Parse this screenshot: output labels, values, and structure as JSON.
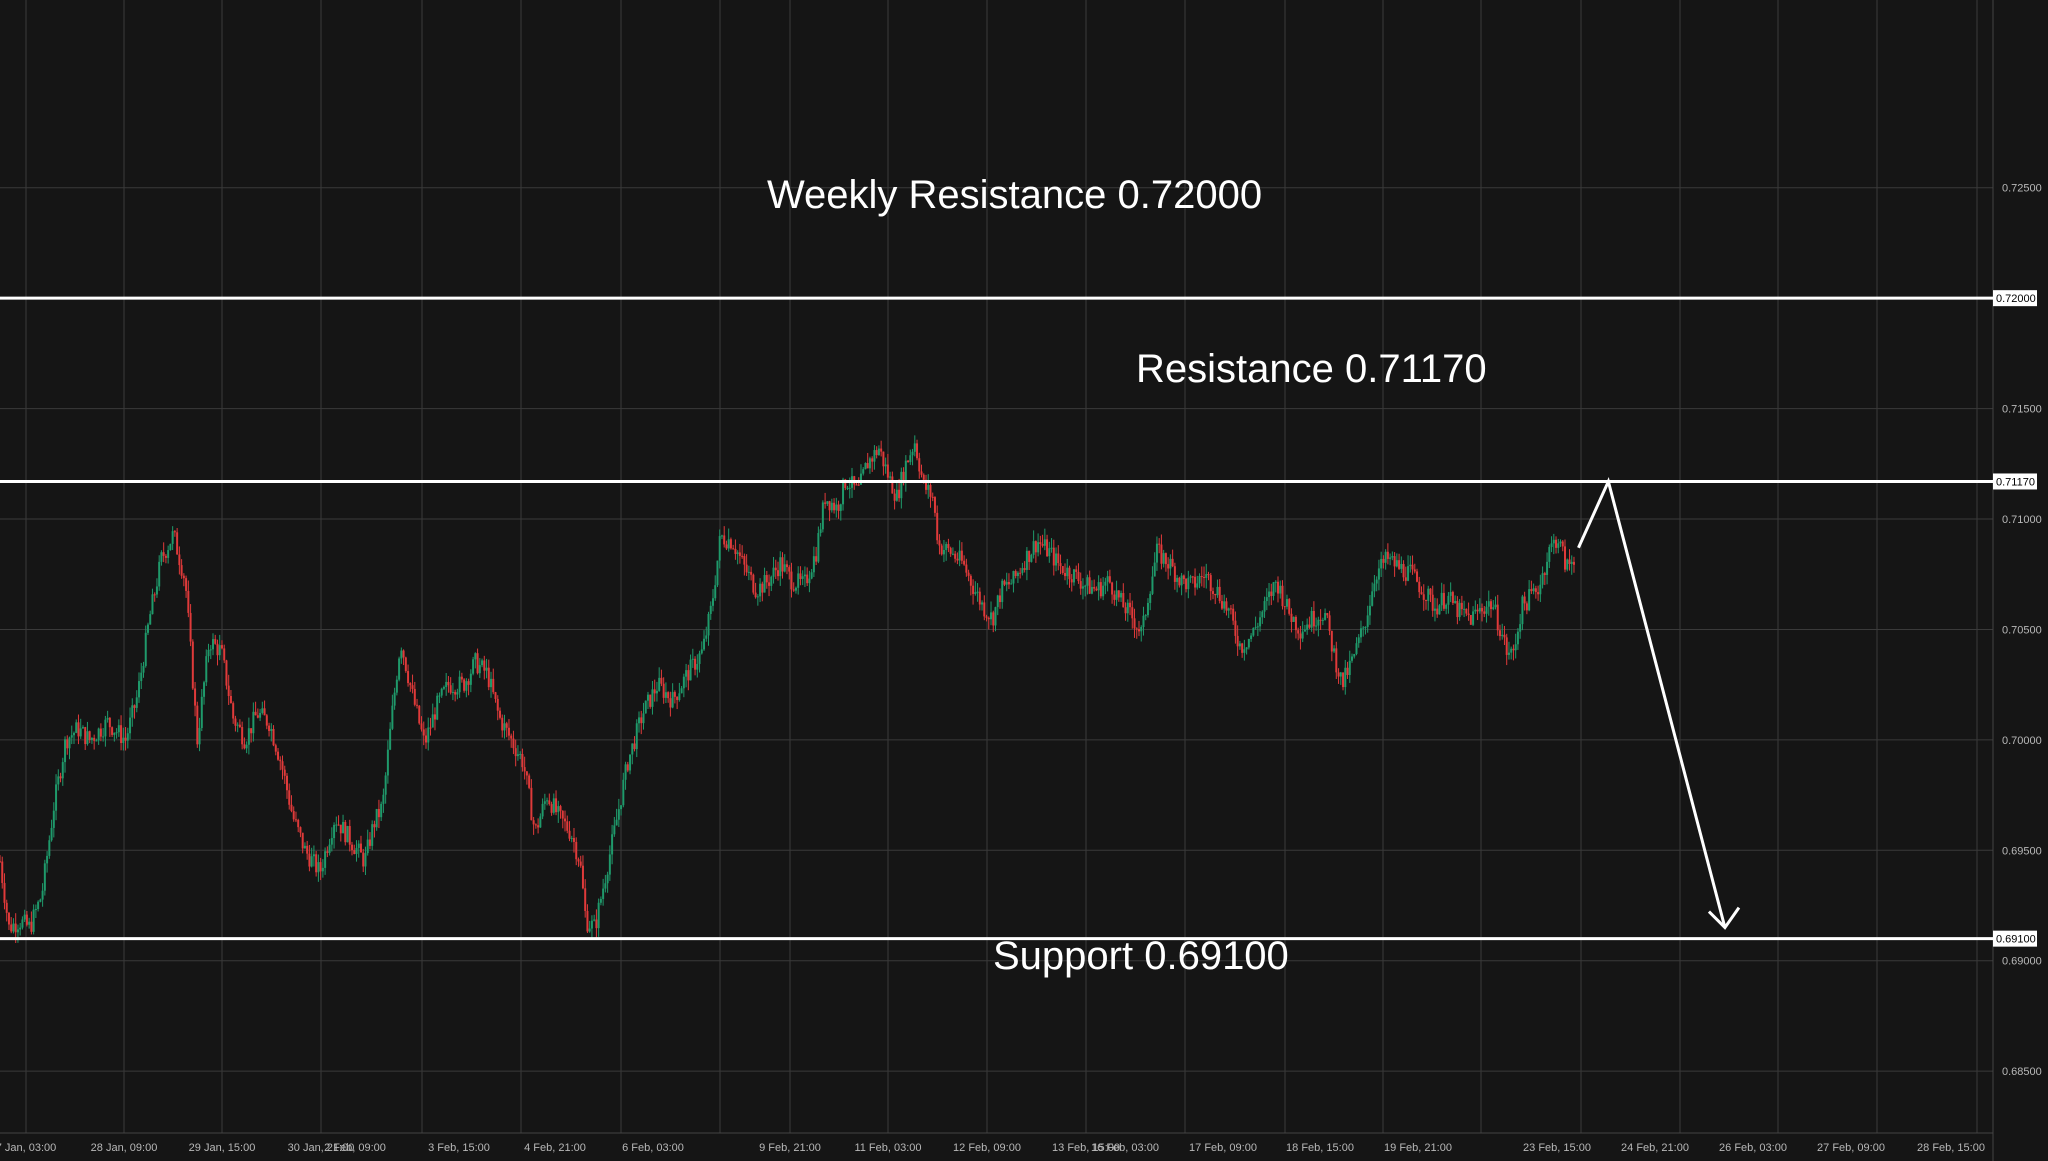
{
  "chart_data": {
    "type": "candlestick",
    "colors": {
      "background": "#151515",
      "grid": "#3a3a3a",
      "up": "#1f9a6b",
      "down": "#e03a3a",
      "levels": "#ffffff",
      "axis_text": "#b8b8b8"
    },
    "grid": true,
    "ylim": [
      0.6822,
      0.7335
    ],
    "y_ticks": [
      "0.72500",
      "0.72000",
      "0.71500",
      "0.71170",
      "0.71000",
      "0.70500",
      "0.70000",
      "0.69500",
      "0.69100",
      "0.69000",
      "0.68500"
    ],
    "x_ticks": [
      "7 Jan, 03:00",
      "28 Jan, 09:00",
      "29 Jan, 15:00",
      "30 Jan, 21:00",
      "2 Feb, 09:00",
      "3 Feb, 15:00",
      "4 Feb, 21:00",
      "6 Feb, 03:00",
      "9 Feb, 21:00",
      "11 Feb, 03:00",
      "12 Feb, 09:00",
      "13 Feb, 15:00",
      "16 Feb, 03:00",
      "17 Feb, 09:00",
      "18 Feb, 15:00",
      "19 Feb, 21:00",
      "23 Feb, 15:00",
      "24 Feb, 21:00",
      "26 Feb, 03:00",
      "27 Feb, 09:00",
      "28 Feb, 15:00"
    ],
    "price_path": [
      [
        0,
        0.6945
      ],
      [
        6,
        0.6915
      ],
      [
        13,
        0.6918
      ],
      [
        20,
        0.6915
      ],
      [
        28,
        0.693
      ],
      [
        36,
        0.697
      ],
      [
        44,
        0.7
      ],
      [
        52,
        0.7005
      ],
      [
        60,
        0.7
      ],
      [
        72,
        0.7008
      ],
      [
        84,
        0.7
      ],
      [
        92,
        0.702
      ],
      [
        100,
        0.7055
      ],
      [
        108,
        0.7082
      ],
      [
        116,
        0.7093
      ],
      [
        124,
        0.7072
      ],
      [
        132,
        0.7
      ],
      [
        140,
        0.7045
      ],
      [
        148,
        0.704
      ],
      [
        156,
        0.701
      ],
      [
        164,
        0.7
      ],
      [
        172,
        0.7012
      ],
      [
        180,
        0.7008
      ],
      [
        188,
        0.699
      ],
      [
        196,
        0.6965
      ],
      [
        204,
        0.695
      ],
      [
        214,
        0.694
      ],
      [
        224,
        0.6965
      ],
      [
        234,
        0.6955
      ],
      [
        244,
        0.6945
      ],
      [
        250,
        0.6962
      ],
      [
        256,
        0.697
      ],
      [
        262,
        0.701
      ],
      [
        268,
        0.7045
      ],
      [
        276,
        0.702
      ],
      [
        284,
        0.6998
      ],
      [
        292,
        0.7015
      ],
      [
        300,
        0.7025
      ],
      [
        310,
        0.7025
      ],
      [
        318,
        0.7035
      ],
      [
        326,
        0.703
      ],
      [
        334,
        0.701
      ],
      [
        342,
        0.7
      ],
      [
        350,
        0.699
      ],
      [
        358,
        0.6958
      ],
      [
        366,
        0.6975
      ],
      [
        374,
        0.6965
      ],
      [
        382,
        0.6958
      ],
      [
        388,
        0.6945
      ],
      [
        392,
        0.6918
      ],
      [
        398,
        0.6915
      ],
      [
        404,
        0.6935
      ],
      [
        410,
        0.6955
      ],
      [
        420,
        0.699
      ],
      [
        430,
        0.7012
      ],
      [
        440,
        0.7025
      ],
      [
        450,
        0.7018
      ],
      [
        460,
        0.703
      ],
      [
        470,
        0.704
      ],
      [
        476,
        0.706
      ],
      [
        482,
        0.7092
      ],
      [
        490,
        0.709
      ],
      [
        498,
        0.7078
      ],
      [
        506,
        0.7068
      ],
      [
        514,
        0.7072
      ],
      [
        522,
        0.708
      ],
      [
        530,
        0.7072
      ],
      [
        538,
        0.707
      ],
      [
        546,
        0.7085
      ],
      [
        552,
        0.711
      ],
      [
        560,
        0.7105
      ],
      [
        566,
        0.7118
      ],
      [
        574,
        0.7112
      ],
      [
        580,
        0.7125
      ],
      [
        588,
        0.7132
      ],
      [
        594,
        0.712
      ],
      [
        600,
        0.711
      ],
      [
        606,
        0.7125
      ],
      [
        612,
        0.7135
      ],
      [
        618,
        0.7115
      ],
      [
        624,
        0.711
      ],
      [
        628,
        0.7088
      ],
      [
        636,
        0.7085
      ],
      [
        644,
        0.708
      ],
      [
        652,
        0.7068
      ],
      [
        658,
        0.706
      ],
      [
        664,
        0.7055
      ],
      [
        670,
        0.7068
      ],
      [
        678,
        0.7072
      ],
      [
        686,
        0.7082
      ],
      [
        694,
        0.709
      ],
      [
        702,
        0.7085
      ],
      [
        710,
        0.7078
      ],
      [
        718,
        0.7075
      ],
      [
        726,
        0.707
      ],
      [
        734,
        0.7068
      ],
      [
        742,
        0.7072
      ],
      [
        750,
        0.7062
      ],
      [
        758,
        0.7055
      ],
      [
        764,
        0.7048
      ],
      [
        768,
        0.7065
      ],
      [
        774,
        0.7085
      ],
      [
        782,
        0.708
      ],
      [
        790,
        0.7072
      ],
      [
        798,
        0.707
      ],
      [
        806,
        0.7075
      ],
      [
        814,
        0.7068
      ],
      [
        822,
        0.7058
      ],
      [
        830,
        0.7042
      ],
      [
        838,
        0.7048
      ],
      [
        846,
        0.706
      ],
      [
        854,
        0.7072
      ],
      [
        862,
        0.7058
      ],
      [
        870,
        0.705
      ],
      [
        878,
        0.7055
      ],
      [
        886,
        0.7058
      ],
      [
        892,
        0.704
      ],
      [
        898,
        0.7025
      ],
      [
        906,
        0.7038
      ],
      [
        914,
        0.7055
      ],
      [
        920,
        0.7075
      ],
      [
        928,
        0.7082
      ],
      [
        936,
        0.7078
      ],
      [
        944,
        0.7075
      ],
      [
        952,
        0.7068
      ],
      [
        960,
        0.706
      ],
      [
        968,
        0.7065
      ],
      [
        976,
        0.7058
      ],
      [
        984,
        0.7055
      ],
      [
        992,
        0.706
      ],
      [
        998,
        0.7062
      ],
      [
        1004,
        0.705
      ],
      [
        1008,
        0.704
      ],
      [
        1012,
        0.7038
      ],
      [
        1018,
        0.706
      ],
      [
        1024,
        0.7065
      ],
      [
        1030,
        0.707
      ],
      [
        1036,
        0.7085
      ],
      [
        1042,
        0.7092
      ],
      [
        1048,
        0.7078
      ],
      [
        1054,
        0.7083
      ]
    ]
  },
  "levels": [
    {
      "label": "Weekly Resistance 0.72000",
      "price": 0.72,
      "tag": "0.72000"
    },
    {
      "label": "Resistance 0.71170",
      "price": 0.7117,
      "tag": "0.71170"
    },
    {
      "label": "Support 0.69100",
      "price": 0.691,
      "tag": "0.69100"
    }
  ],
  "projection": {
    "points": [
      [
        1056,
        0.7087
      ],
      [
        1076,
        0.7117
      ],
      [
        1154,
        0.6915
      ]
    ],
    "target": 0.691
  }
}
